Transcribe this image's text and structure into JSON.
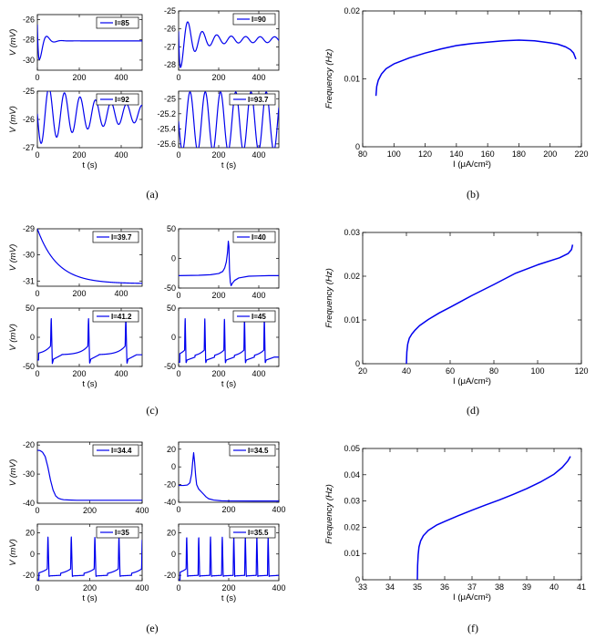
{
  "colors": {
    "trace": "#0000ee",
    "axis": "#000000"
  },
  "panel_labels": [
    "(a)",
    "(b)",
    "(c)",
    "(d)",
    "(e)",
    "(f)"
  ],
  "chart_data": [
    {
      "id": "a1",
      "type": "line",
      "ylabel": "V (mV)",
      "xlabel": "",
      "legend": "I=85",
      "xlim": [
        0,
        500
      ],
      "ylim": [
        -31,
        -25.5
      ],
      "xticks": [
        0,
        200,
        400
      ],
      "yticks": [
        -30,
        -28,
        -26
      ],
      "series": [
        {
          "name": "I=85",
          "kind": "damped",
          "base": -28.1,
          "start": -25.6,
          "amp": 2.9,
          "tau": 25,
          "period": 70,
          "phase": 0.45,
          "sustain": 0
        }
      ]
    },
    {
      "id": "a2",
      "type": "line",
      "ylabel": "",
      "xlabel": "",
      "legend": "I=90",
      "xlim": [
        0,
        500
      ],
      "ylim": [
        -28.3,
        -25
      ],
      "xticks": [
        0,
        200,
        400
      ],
      "yticks": [
        -28,
        -27,
        -26,
        -25
      ],
      "series": [
        {
          "name": "I=90",
          "kind": "damped",
          "base": -26.6,
          "start": -25.1,
          "amp": 1.6,
          "tau": 70,
          "period": 72,
          "phase": 0.4,
          "sustain": 0.1
        }
      ]
    },
    {
      "id": "a3",
      "type": "line",
      "ylabel": "V (mV)",
      "xlabel": "t (s)",
      "legend": "I=92",
      "xlim": [
        0,
        500
      ],
      "ylim": [
        -27,
        -25
      ],
      "xticks": [
        0,
        200,
        400
      ],
      "yticks": [
        -27,
        -26,
        -25
      ],
      "series": [
        {
          "name": "I=92",
          "kind": "damped",
          "base": -25.8,
          "start": -25.8,
          "amp": 0.95,
          "tau": 260,
          "period": 74,
          "phase": 0.5,
          "sustain": 0.17
        }
      ]
    },
    {
      "id": "a4",
      "type": "line",
      "ylabel": "",
      "xlabel": "t (s)",
      "legend": "I=93.7",
      "xlim": [
        0,
        500
      ],
      "ylim": [
        -25.65,
        -24.9
      ],
      "xticks": [
        0,
        200,
        400
      ],
      "yticks": [
        -25.6,
        -25.4,
        -25.2,
        -25
      ],
      "series": [
        {
          "name": "I=93.7",
          "kind": "damped",
          "base": -25.3,
          "start": -25.3,
          "amp": 0.3,
          "tau": 100000,
          "period": 76,
          "phase": 0.5,
          "sustain": 0.3
        }
      ]
    },
    {
      "id": "b",
      "type": "line",
      "ylabel": "Frequency (Hz)",
      "xlabel": "I (μA/cm²)",
      "legend": "",
      "xlim": [
        80,
        220
      ],
      "ylim": [
        0,
        0.02
      ],
      "xticks": [
        80,
        100,
        120,
        140,
        160,
        180,
        200,
        220
      ],
      "yticks": [
        0,
        0.01,
        0.02
      ],
      "series": [
        {
          "name": "",
          "kind": "xy",
          "x": [
            88.5,
            89,
            90,
            92,
            95,
            100,
            110,
            120,
            130,
            140,
            150,
            160,
            170,
            180,
            190,
            200,
            205,
            210,
            213,
            215,
            216.5
          ],
          "y": [
            0.0075,
            0.0089,
            0.0098,
            0.0107,
            0.0115,
            0.0122,
            0.0131,
            0.0138,
            0.0144,
            0.0149,
            0.0152,
            0.0154,
            0.0156,
            0.0157,
            0.0156,
            0.0153,
            0.0151,
            0.0147,
            0.0143,
            0.0138,
            0.0129
          ]
        }
      ]
    },
    {
      "id": "c1",
      "type": "line",
      "ylabel": "V (mV)",
      "xlabel": "",
      "legend": "I=39.7",
      "xlim": [
        0,
        500
      ],
      "ylim": [
        -31.2,
        -29
      ],
      "xticks": [
        0,
        200,
        400
      ],
      "yticks": [
        -31,
        -30,
        -29
      ],
      "series": [
        {
          "name": "I=39.7",
          "kind": "decay",
          "from": -29,
          "to": -31.1,
          "tau": 95
        }
      ]
    },
    {
      "id": "c2",
      "type": "line",
      "ylabel": "",
      "xlabel": "",
      "legend": "I=40",
      "xlim": [
        0,
        500
      ],
      "ylim": [
        -50,
        50
      ],
      "xticks": [
        0,
        200,
        400
      ],
      "yticks": [
        -50,
        0,
        50
      ],
      "series": [
        {
          "name": "I=40",
          "kind": "xy",
          "x": [
            0,
            100,
            160,
            200,
            220,
            230,
            238,
            244,
            248,
            251,
            254,
            258,
            262,
            268,
            280,
            300,
            350,
            400,
            450,
            500
          ],
          "y": [
            -29,
            -28.5,
            -27.5,
            -25.5,
            -22,
            -16,
            -6,
            10,
            29,
            20,
            -20,
            -40,
            -46,
            -42,
            -37,
            -33,
            -30,
            -29.5,
            -29,
            -29
          ]
        }
      ]
    },
    {
      "id": "c3",
      "type": "line",
      "ylabel": "V (mV)",
      "xlabel": "t (s)",
      "legend": "I=41.2",
      "xlim": [
        0,
        500
      ],
      "ylim": [
        -50,
        50
      ],
      "xticks": [
        0,
        200,
        400
      ],
      "yticks": [
        -50,
        0,
        50
      ],
      "series": [
        {
          "name": "I=41.2",
          "kind": "spikes",
          "times": [
            63,
            241,
            419
          ],
          "base": -30,
          "ramp": 15,
          "peak": 32,
          "trough": -45,
          "width": 14
        }
      ]
    },
    {
      "id": "c4",
      "type": "line",
      "ylabel": "",
      "xlabel": "t (s)",
      "legend": "I=45",
      "xlim": [
        0,
        500
      ],
      "ylim": [
        -50,
        50
      ],
      "xticks": [
        0,
        200,
        400
      ],
      "yticks": [
        -50,
        0,
        50
      ],
      "series": [
        {
          "name": "I=45",
          "kind": "spikes",
          "times": [
            30,
            128,
            226,
            326,
            425
          ],
          "base": -34,
          "ramp": 12,
          "peak": 32,
          "trough": -44,
          "width": 12
        }
      ]
    },
    {
      "id": "d",
      "type": "line",
      "ylabel": "Frequency (Hz)",
      "xlabel": "I (μA/cm²)",
      "legend": "",
      "xlim": [
        20,
        120
      ],
      "ylim": [
        0,
        0.03
      ],
      "xticks": [
        20,
        40,
        60,
        80,
        100,
        120
      ],
      "yticks": [
        0,
        0.01,
        0.02,
        0.03
      ],
      "series": [
        {
          "name": "",
          "kind": "xy",
          "x": [
            40,
            40.2,
            40.6,
            41.3,
            42.5,
            44,
            46,
            50,
            55,
            60,
            70,
            80,
            90,
            100,
            110,
            114,
            115.5,
            116
          ],
          "y": [
            0,
            0.0027,
            0.0045,
            0.0058,
            0.0068,
            0.0077,
            0.0087,
            0.0101,
            0.0116,
            0.0129,
            0.0156,
            0.0181,
            0.0207,
            0.0226,
            0.0242,
            0.0252,
            0.0261,
            0.0272
          ]
        }
      ]
    },
    {
      "id": "e1",
      "type": "line",
      "ylabel": "V (mV)",
      "xlabel": "",
      "legend": "I=34.4",
      "xlim": [
        0,
        400
      ],
      "ylim": [
        -40,
        -19
      ],
      "xticks": [
        0,
        200,
        400
      ],
      "yticks": [
        -40,
        -30,
        -20
      ],
      "series": [
        {
          "name": "I=34.4",
          "kind": "xy",
          "x": [
            0,
            10,
            20,
            30,
            40,
            50,
            60,
            70,
            80,
            90,
            100,
            120,
            150,
            200,
            300,
            400
          ],
          "y": [
            -21.8,
            -21.9,
            -22.5,
            -24,
            -27.5,
            -32,
            -35.5,
            -37.5,
            -38.3,
            -38.6,
            -38.8,
            -38.9,
            -39,
            -39,
            -39,
            -39
          ]
        }
      ]
    },
    {
      "id": "e2",
      "type": "line",
      "ylabel": "",
      "xlabel": "",
      "legend": "I=34.5",
      "xlim": [
        0,
        400
      ],
      "ylim": [
        -40,
        28
      ],
      "xticks": [
        0,
        200,
        400
      ],
      "yticks": [
        -40,
        -20,
        0,
        20
      ],
      "series": [
        {
          "name": "I=34.5",
          "kind": "xy",
          "x": [
            0,
            20,
            35,
            45,
            52,
            56,
            60,
            64,
            68,
            72,
            80,
            90,
            100,
            110,
            120,
            140,
            170,
            200,
            300,
            400
          ],
          "y": [
            -21,
            -21,
            -20.5,
            -18,
            -8,
            5,
            16,
            5,
            -10,
            -20,
            -25,
            -28,
            -31,
            -34,
            -36,
            -37.5,
            -38.3,
            -38.5,
            -38.6,
            -38.6
          ]
        }
      ]
    },
    {
      "id": "e3",
      "type": "line",
      "ylabel": "V (mV)",
      "xlabel": "t (s)",
      "legend": "I=35",
      "xlim": [
        0,
        400
      ],
      "ylim": [
        -25,
        28
      ],
      "xticks": [
        0,
        200,
        400
      ],
      "yticks": [
        -20,
        0,
        20
      ],
      "series": [
        {
          "name": "I=35",
          "kind": "spikes",
          "times": [
            38,
            127,
            217,
            309,
            398
          ],
          "base": -20,
          "ramp": 6,
          "peak": 16,
          "trough": -21,
          "width": 11
        }
      ]
    },
    {
      "id": "e4",
      "type": "line",
      "ylabel": "",
      "xlabel": "t (s)",
      "legend": "I=35.5",
      "xlim": [
        0,
        400
      ],
      "ylim": [
        -25,
        28
      ],
      "xticks": [
        0,
        200,
        400
      ],
      "yticks": [
        -20,
        0,
        20
      ],
      "series": [
        {
          "name": "I=35.5",
          "kind": "spikes",
          "times": [
            30,
            78,
            125,
            172,
            218,
            264,
            310,
            355
          ],
          "base": -20,
          "ramp": 6,
          "peak": 16,
          "trough": -21,
          "width": 10
        }
      ]
    },
    {
      "id": "f",
      "type": "line",
      "ylabel": "Frequency (Hz)",
      "xlabel": "I (μA/cm²)",
      "legend": "",
      "xlim": [
        33,
        41
      ],
      "ylim": [
        0,
        0.05
      ],
      "xticks": [
        33,
        34,
        35,
        36,
        37,
        38,
        39,
        40,
        41
      ],
      "yticks": [
        0,
        0.01,
        0.02,
        0.03,
        0.04,
        0.05
      ],
      "series": [
        {
          "name": "",
          "kind": "xy",
          "x": [
            35,
            35.01,
            35.03,
            35.06,
            35.12,
            35.22,
            35.4,
            35.7,
            36,
            36.5,
            37,
            37.5,
            38,
            38.5,
            39,
            39.5,
            40,
            40.3,
            40.5,
            40.6
          ],
          "y": [
            0,
            0.0055,
            0.0095,
            0.0125,
            0.0148,
            0.0168,
            0.0188,
            0.0208,
            0.0222,
            0.0244,
            0.0265,
            0.0285,
            0.0304,
            0.0325,
            0.0347,
            0.0372,
            0.0402,
            0.0428,
            0.0452,
            0.047
          ]
        }
      ]
    }
  ]
}
